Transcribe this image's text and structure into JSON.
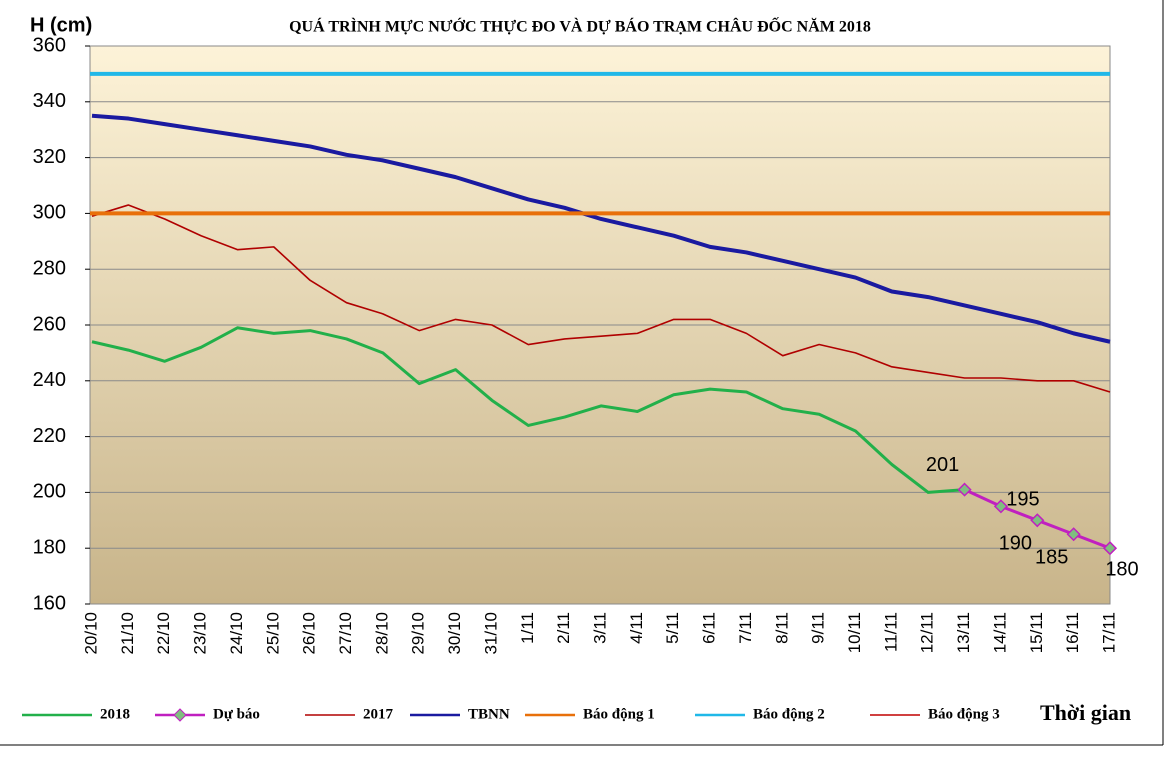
{
  "chart_data": {
    "type": "line",
    "title": "QUÁ TRÌNH MỰC NƯỚC THỰC ĐO VÀ DỰ BÁO TRẠM CHÂU ĐỐC NĂM 2018",
    "y_label": "H (cm)",
    "x_label": "Thời gian",
    "categories": [
      "20/10",
      "21/10",
      "22/10",
      "23/10",
      "24/10",
      "25/10",
      "26/10",
      "27/10",
      "28/10",
      "29/10",
      "30/10",
      "31/10",
      "1/11",
      "2/11",
      "3/11",
      "4/11",
      "5/11",
      "6/11",
      "7/11",
      "8/11",
      "9/11",
      "10/11",
      "11/11",
      "12/11",
      "13/11",
      "14/11",
      "15/11",
      "16/11",
      "17/11"
    ],
    "ylim": [
      160,
      360
    ],
    "yticks": [
      160,
      180,
      200,
      220,
      240,
      260,
      280,
      300,
      320,
      340,
      360
    ],
    "grid": true,
    "legend": "bottom",
    "series": [
      {
        "name": "2018",
        "color": "#22b04a",
        "values": [
          254,
          251,
          247,
          252,
          259,
          257,
          258,
          255,
          250,
          239,
          244,
          233,
          224,
          227,
          231,
          229,
          235,
          237,
          236,
          230,
          228,
          222,
          210,
          200,
          201,
          null,
          null,
          null,
          null
        ]
      },
      {
        "name": "Dự báo",
        "color": "#c020c0",
        "marker_color": "#7fbf7f",
        "values": [
          null,
          null,
          null,
          null,
          null,
          null,
          null,
          null,
          null,
          null,
          null,
          null,
          null,
          null,
          null,
          null,
          null,
          null,
          null,
          null,
          null,
          null,
          null,
          null,
          201,
          195,
          190,
          185,
          180
        ]
      },
      {
        "name": "2017",
        "color": "#b00000",
        "values": [
          299,
          303,
          298,
          292,
          287,
          288,
          276,
          268,
          264,
          258,
          262,
          260,
          253,
          255,
          256,
          257,
          262,
          262,
          257,
          249,
          253,
          250,
          245,
          243,
          241,
          241,
          240,
          240,
          236
        ]
      },
      {
        "name": "TBNN",
        "color": "#1a1aa0",
        "values": [
          335,
          334,
          332,
          330,
          328,
          326,
          324,
          321,
          319,
          316,
          313,
          309,
          305,
          302,
          298,
          295,
          292,
          288,
          286,
          283,
          280,
          277,
          272,
          270,
          267,
          264,
          261,
          257,
          254
        ]
      },
      {
        "name": "Báo động 1",
        "color": "#e8700a",
        "value": 300
      },
      {
        "name": "Báo động 2",
        "color": "#20b8e8",
        "value": 350
      },
      {
        "name": "Báo động 3",
        "color": "#c00000"
      }
    ]
  }
}
